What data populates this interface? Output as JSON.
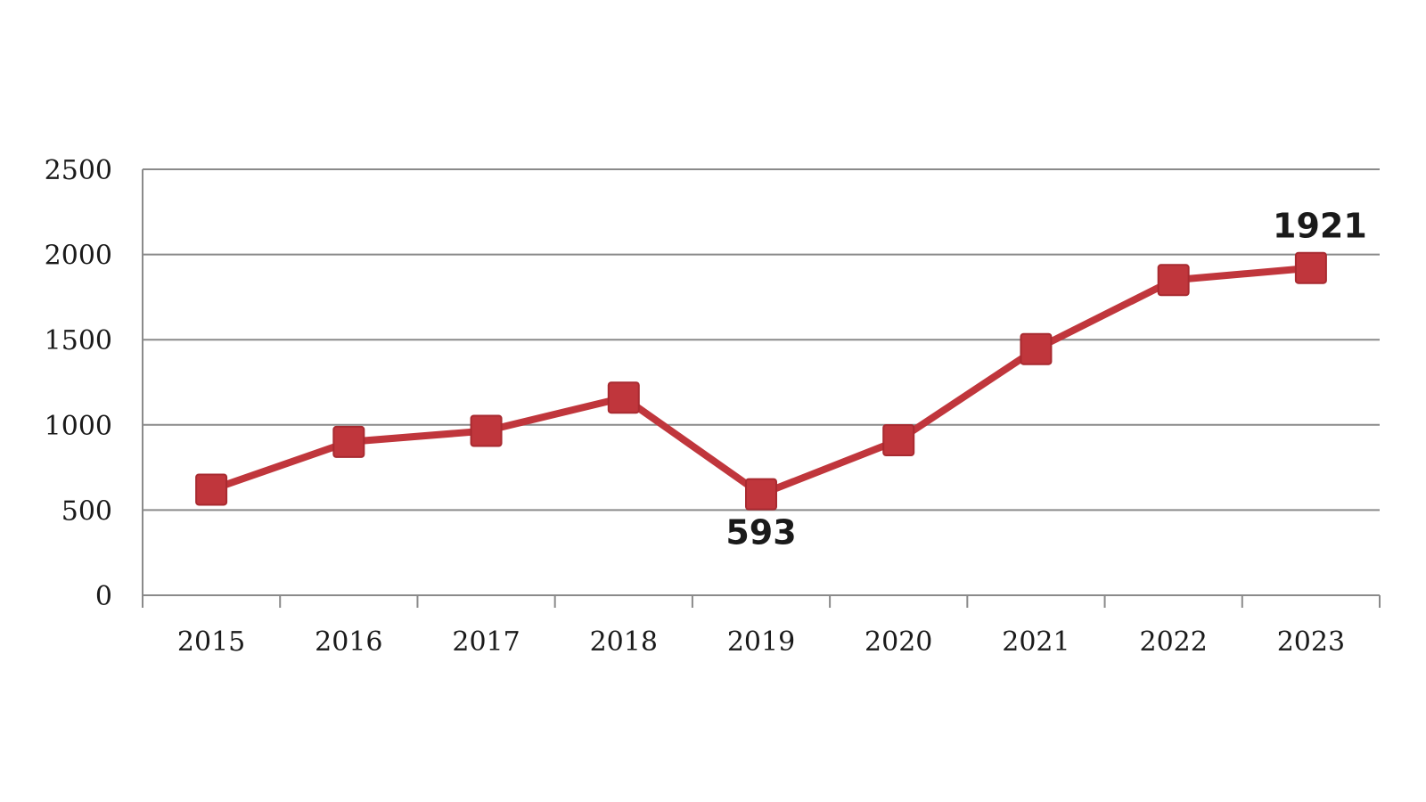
{
  "chart_data": {
    "type": "line",
    "categories": [
      "2015",
      "2016",
      "2017",
      "2018",
      "2019",
      "2020",
      "2021",
      "2022",
      "2023"
    ],
    "series": [
      {
        "values": [
          620,
          900,
          965,
          1160,
          593,
          910,
          1445,
          1850,
          1921
        ]
      }
    ],
    "ylim": [
      0,
      2500
    ],
    "yticks": [
      0,
      500,
      1000,
      1500,
      2000,
      2500
    ],
    "grid": true,
    "legend": "none",
    "line_color": "#c0363c",
    "marker": "square",
    "data_labels": [
      {
        "category": "2019",
        "text": "593",
        "placement": "below"
      },
      {
        "category": "2023",
        "text": "1921",
        "placement": "above"
      }
    ]
  }
}
